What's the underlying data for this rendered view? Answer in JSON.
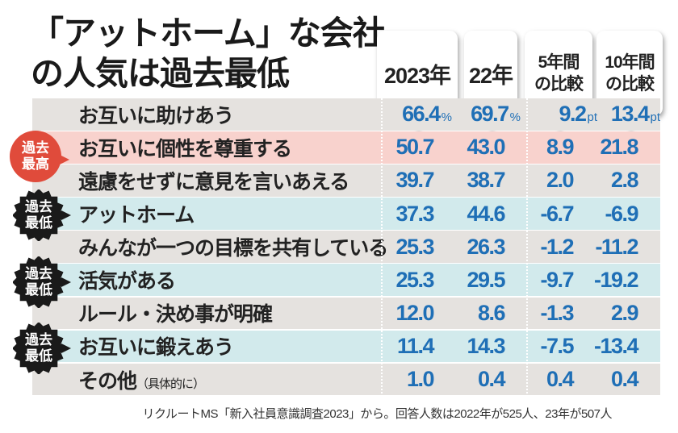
{
  "title": {
    "line1": "「アットホーム」な会社",
    "line2": "の人気は過去最低"
  },
  "headers": [
    {
      "line1": "2023年",
      "line2": ""
    },
    {
      "line1": "22年",
      "line2": ""
    },
    {
      "line1": "5年間",
      "line2": "の比較"
    },
    {
      "line1": "10年間",
      "line2": "の比較"
    }
  ],
  "units": {
    "percent": "%",
    "pt": "pt"
  },
  "badges": {
    "high": "過去最高",
    "low": "過去最低"
  },
  "colors": {
    "value": "#1f6fb6",
    "row_gray": "#e5e2df",
    "row_pink": "#f8d2cd",
    "row_cyan": "#d2eaec",
    "badge_red": "#e04b3b",
    "badge_black": "#1a1a1a"
  },
  "chart_data": {
    "type": "table",
    "title": "「アットホーム」な会社の人気は過去最低",
    "columns": [
      "2023年",
      "22年",
      "5年間の比較",
      "10年間の比較"
    ],
    "rows": [
      {
        "label": "お互いに助けあう",
        "note": "",
        "values": [
          "66.4",
          "69.7",
          "9.2",
          "13.4"
        ],
        "badge": ""
      },
      {
        "label": "お互いに個性を尊重する",
        "note": "",
        "values": [
          "50.7",
          "43.0",
          "8.9",
          "21.8"
        ],
        "badge": "過去最高"
      },
      {
        "label": "遠慮をせずに意見を言いあえる",
        "note": "",
        "values": [
          "39.7",
          "38.7",
          "2.0",
          "2.8"
        ],
        "badge": ""
      },
      {
        "label": "アットホーム",
        "note": "",
        "values": [
          "37.3",
          "44.6",
          "-6.7",
          "-6.9"
        ],
        "badge": "過去最低"
      },
      {
        "label": "みんなが一つの目標を共有している",
        "note": "",
        "values": [
          "25.3",
          "26.3",
          "-1.2",
          "-11.2"
        ],
        "badge": ""
      },
      {
        "label": "活気がある",
        "note": "",
        "values": [
          "25.3",
          "29.5",
          "-9.7",
          "-19.2"
        ],
        "badge": "過去最低"
      },
      {
        "label": "ルール・決め事が明確",
        "note": "",
        "values": [
          "12.0",
          "8.6",
          "-1.3",
          "2.9"
        ],
        "badge": ""
      },
      {
        "label": "お互いに鍛えあう",
        "note": "",
        "values": [
          "11.4",
          "14.3",
          "-7.5",
          "-13.4"
        ],
        "badge": "過去最低"
      },
      {
        "label": "その他",
        "note": "（具体的に）",
        "values": [
          "1.0",
          "0.4",
          "0.4",
          "0.4"
        ],
        "badge": ""
      }
    ]
  },
  "source": "リクルートMS「新入社員意識調査2023」から。回答人数は2022年が525人、23年が507人"
}
